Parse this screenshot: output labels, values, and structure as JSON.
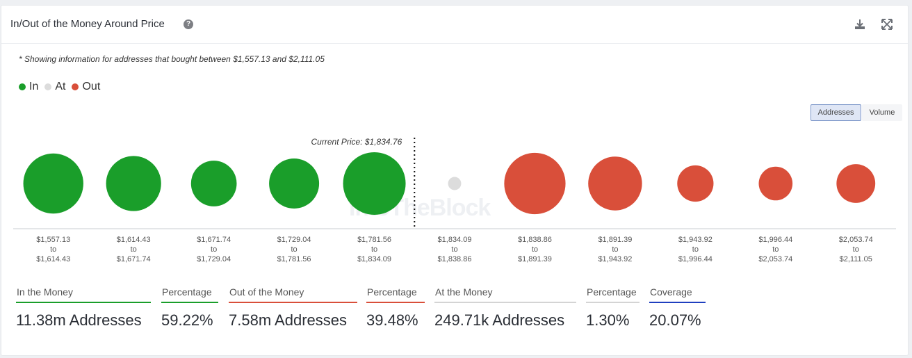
{
  "header": {
    "title": "In/Out of the Money Around Price",
    "help_icon": "help-circle-icon",
    "download_icon": "download-icon",
    "expand_icon": "expand-icon"
  },
  "note": "* Showing information for addresses that bought between $1,557.13 and $2,111.05",
  "legend": [
    {
      "label": "In",
      "color": "#1a9e2a"
    },
    {
      "label": "At",
      "color": "#dcdcdc"
    },
    {
      "label": "Out",
      "color": "#d94f3a"
    }
  ],
  "toggle": {
    "addresses": "Addresses",
    "volume": "Volume",
    "active": "Addresses"
  },
  "watermark": "IntoTheBlock",
  "chart_data": {
    "type": "bubble",
    "current_price_label": "Current Price: $1,834.76",
    "categories": [
      {
        "from": "$1,557.13",
        "to_word": "to",
        "to": "$1,614.43",
        "status": "in",
        "relative_size": 0.96
      },
      {
        "from": "$1,614.43",
        "to_word": "to",
        "to": "$1,671.74",
        "status": "in",
        "relative_size": 0.88
      },
      {
        "from": "$1,671.74",
        "to_word": "to",
        "to": "$1,729.04",
        "status": "in",
        "relative_size": 0.73
      },
      {
        "from": "$1,729.04",
        "to_word": "to",
        "to": "$1,781.56",
        "status": "in",
        "relative_size": 0.8
      },
      {
        "from": "$1,781.56",
        "to_word": "to",
        "to": "$1,834.09",
        "status": "in",
        "relative_size": 1.0
      },
      {
        "from": "$1,834.09",
        "to_word": "to",
        "to": "$1,838.86",
        "status": "at",
        "relative_size": 0.21
      },
      {
        "from": "$1,838.86",
        "to_word": "to",
        "to": "$1,891.39",
        "status": "out",
        "relative_size": 0.98
      },
      {
        "from": "$1,891.39",
        "to_word": "to",
        "to": "$1,943.92",
        "status": "out",
        "relative_size": 0.86
      },
      {
        "from": "$1,943.92",
        "to_word": "to",
        "to": "$1,996.44",
        "status": "out",
        "relative_size": 0.58
      },
      {
        "from": "$1,996.44",
        "to_word": "to",
        "to": "$2,053.74",
        "status": "out",
        "relative_size": 0.54
      },
      {
        "from": "$2,053.74",
        "to_word": "to",
        "to": "$2,111.05",
        "status": "out",
        "relative_size": 0.62
      }
    ],
    "colors": {
      "in": "#1a9e2a",
      "at": "#dcdcdc",
      "out": "#d94f3a"
    }
  },
  "stats": [
    {
      "label": "In the Money",
      "value": "11.38m Addresses",
      "color": "#1a9e2a"
    },
    {
      "label": "Percentage",
      "value": "59.22%",
      "color": "#1a9e2a"
    },
    {
      "label": "Out of the Money",
      "value": "7.58m Addresses",
      "color": "#d94f3a"
    },
    {
      "label": "Percentage",
      "value": "39.48%",
      "color": "#d94f3a"
    },
    {
      "label": "At the Money",
      "value": "249.71k Addresses",
      "color": "#d4d4d4"
    },
    {
      "label": "Percentage",
      "value": "1.30%",
      "color": "#d4d4d4"
    },
    {
      "label": "Coverage",
      "value": "20.07%",
      "color": "#1f3fbf"
    }
  ]
}
